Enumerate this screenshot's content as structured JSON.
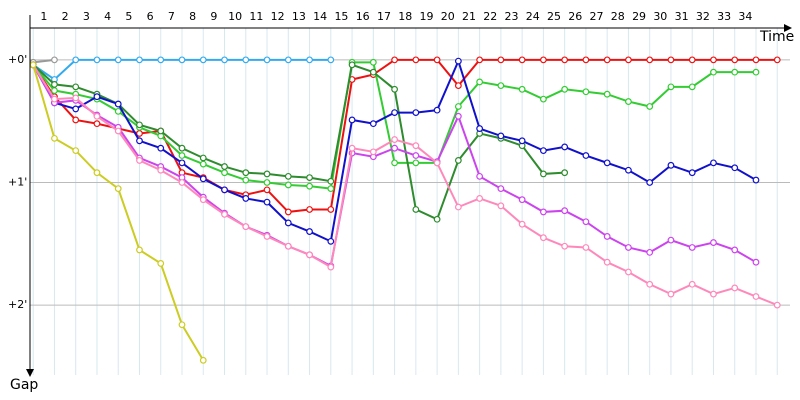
{
  "chart_data": {
    "type": "line",
    "x_label": "Time",
    "y_label": "Gap",
    "x": [
      0,
      1,
      2,
      3,
      4,
      5,
      6,
      7,
      8,
      9,
      10,
      11,
      12,
      13,
      14,
      15,
      16,
      17,
      18,
      19,
      20,
      21,
      22,
      23,
      24,
      25,
      26,
      27,
      28,
      29,
      30,
      31,
      32,
      33,
      34,
      35
    ],
    "xlim": [
      -0.15,
      35.6
    ],
    "xticks": [
      {
        "value": 0.5,
        "label": "1"
      },
      {
        "value": 1.5,
        "label": "2"
      },
      {
        "value": 2.5,
        "label": "3"
      },
      {
        "value": 3.5,
        "label": "4"
      },
      {
        "value": 4.5,
        "label": "5"
      },
      {
        "value": 5.5,
        "label": "6"
      },
      {
        "value": 6.5,
        "label": "7"
      },
      {
        "value": 7.5,
        "label": "8"
      },
      {
        "value": 8.5,
        "label": "9"
      },
      {
        "value": 9.5,
        "label": "10"
      },
      {
        "value": 10.5,
        "label": "11"
      },
      {
        "value": 11.5,
        "label": "12"
      },
      {
        "value": 12.5,
        "label": "13"
      },
      {
        "value": 13.5,
        "label": "14"
      },
      {
        "value": 14.5,
        "label": "15"
      },
      {
        "value": 15.5,
        "label": "16"
      },
      {
        "value": 16.5,
        "label": "17"
      },
      {
        "value": 17.5,
        "label": "18"
      },
      {
        "value": 18.5,
        "label": "19"
      },
      {
        "value": 19.5,
        "label": "20"
      },
      {
        "value": 20.5,
        "label": "21"
      },
      {
        "value": 21.5,
        "label": "22"
      },
      {
        "value": 22.5,
        "label": "23"
      },
      {
        "value": 23.5,
        "label": "24"
      },
      {
        "value": 24.5,
        "label": "25"
      },
      {
        "value": 25.5,
        "label": "26"
      },
      {
        "value": 26.5,
        "label": "27"
      },
      {
        "value": 27.5,
        "label": "28"
      },
      {
        "value": 28.5,
        "label": "29"
      },
      {
        "value": 29.5,
        "label": "30"
      },
      {
        "value": 30.5,
        "label": "31"
      },
      {
        "value": 31.5,
        "label": "32"
      },
      {
        "value": 32.5,
        "label": "33"
      },
      {
        "value": 33.5,
        "label": "34"
      }
    ],
    "ylim": [
      -0.26,
      2.57
    ],
    "yticks": [
      {
        "value": 0,
        "label": "+0'"
      },
      {
        "value": 1,
        "label": "+1'"
      },
      {
        "value": 2,
        "label": "+2'"
      }
    ],
    "grid": true,
    "series": [
      {
        "color": "#999999",
        "values": [
          0.02,
          0,
          null,
          null,
          null,
          null,
          null,
          null,
          null,
          null,
          null,
          null,
          null,
          null,
          null,
          null,
          null,
          null,
          null,
          null,
          null,
          null,
          null,
          null,
          null,
          null,
          null,
          null,
          null,
          null,
          null,
          null,
          null,
          null,
          null,
          null
        ]
      },
      {
        "color": "#33aaee",
        "values": [
          0.04,
          0.16,
          0,
          0,
          0,
          0,
          0,
          0,
          0,
          0,
          0,
          0,
          0,
          0,
          0,
          null,
          null,
          null,
          null,
          null,
          null,
          null,
          null,
          null,
          null,
          null,
          null,
          null,
          null,
          null,
          null,
          null,
          null,
          null,
          null,
          null
        ]
      },
      {
        "color": "#ee1111",
        "values": [
          0.04,
          0.3,
          0.49,
          0.52,
          0.56,
          0.6,
          0.58,
          0.92,
          0.96,
          1.06,
          1.1,
          1.06,
          1.24,
          1.22,
          1.22,
          0.16,
          0.12,
          0,
          0,
          0,
          0.21,
          0,
          0,
          0,
          0,
          0,
          0,
          0,
          0,
          0,
          0,
          0,
          0,
          0,
          0,
          0
        ]
      },
      {
        "color": "#33cc33",
        "values": [
          0.04,
          0.25,
          0.28,
          0.32,
          0.42,
          0.55,
          0.62,
          0.78,
          0.85,
          0.92,
          0.98,
          1.0,
          1.02,
          1.03,
          1.05,
          0.02,
          0.02,
          0.84,
          0.84,
          0.84,
          0.38,
          0.18,
          0.21,
          0.24,
          0.32,
          0.24,
          0.26,
          0.28,
          0.34,
          0.38,
          0.22,
          0.22,
          0.1,
          0.1,
          0.1,
          null
        ]
      },
      {
        "color": "#2e8b2e",
        "values": [
          0.04,
          0.2,
          0.22,
          0.28,
          0.36,
          0.53,
          0.58,
          0.72,
          0.8,
          0.87,
          0.92,
          0.93,
          0.95,
          0.96,
          0.99,
          0.04,
          0.1,
          0.24,
          1.22,
          1.3,
          0.82,
          0.6,
          0.64,
          0.7,
          0.93,
          0.92,
          null,
          null,
          null,
          null,
          null,
          null,
          null,
          null,
          null,
          null
        ]
      },
      {
        "color": "#1111cc",
        "values": [
          0.04,
          0.35,
          0.4,
          0.3,
          0.36,
          0.66,
          0.72,
          0.84,
          0.97,
          1.06,
          1.13,
          1.16,
          1.33,
          1.4,
          1.48,
          0.49,
          0.52,
          0.43,
          0.43,
          0.41,
          0.01,
          0.56,
          0.62,
          0.66,
          0.74,
          0.71,
          0.78,
          0.84,
          0.9,
          1.0,
          0.86,
          0.92,
          0.84,
          0.88,
          0.98,
          null
        ]
      },
      {
        "color": "#cc44ee",
        "values": [
          0.04,
          0.35,
          0.33,
          0.45,
          0.55,
          0.8,
          0.87,
          0.96,
          1.12,
          1.25,
          1.36,
          1.43,
          1.52,
          1.59,
          1.68,
          0.76,
          0.79,
          0.72,
          0.78,
          0.83,
          0.46,
          0.95,
          1.05,
          1.14,
          1.24,
          1.23,
          1.32,
          1.44,
          1.53,
          1.57,
          1.47,
          1.53,
          1.49,
          1.55,
          1.65,
          null
        ]
      },
      {
        "color": "#ff88bb",
        "values": [
          0.04,
          0.32,
          0.31,
          0.46,
          0.58,
          0.82,
          0.9,
          1.0,
          1.14,
          1.26,
          1.36,
          1.44,
          1.52,
          1.59,
          1.69,
          0.72,
          0.75,
          0.65,
          0.7,
          0.84,
          1.2,
          1.13,
          1.19,
          1.34,
          1.45,
          1.52,
          1.53,
          1.65,
          1.73,
          1.83,
          1.91,
          1.83,
          1.91,
          1.86,
          1.93,
          2.0
        ]
      },
      {
        "color": "#cccc22",
        "values": [
          0.04,
          0.64,
          0.74,
          0.92,
          1.05,
          1.55,
          1.66,
          2.16,
          2.45,
          null,
          null,
          null,
          null,
          null,
          null,
          null,
          null,
          null,
          null,
          null,
          null,
          null,
          null,
          null,
          null,
          null,
          null,
          null,
          null,
          null,
          null,
          null,
          null,
          null,
          null,
          null
        ]
      }
    ]
  }
}
